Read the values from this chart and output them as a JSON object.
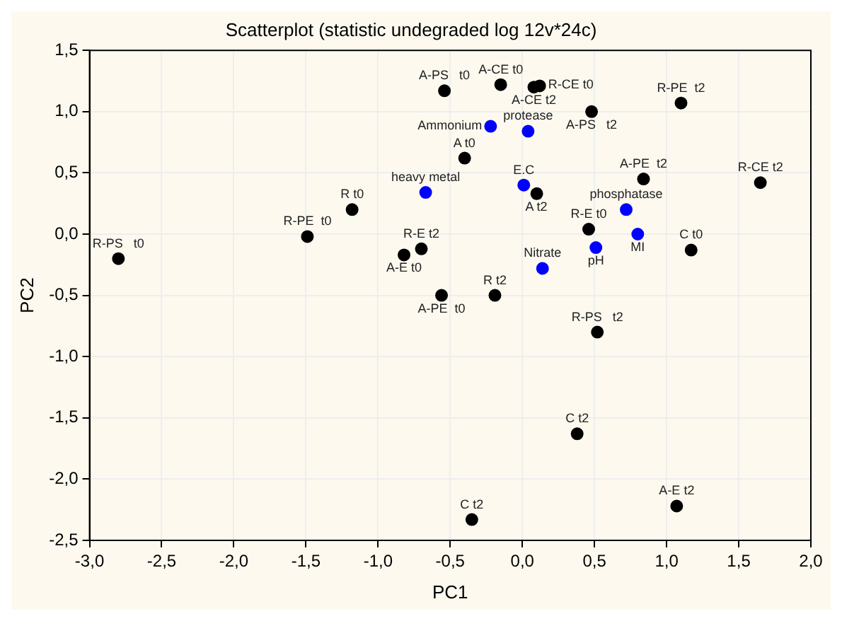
{
  "chart_data": {
    "type": "scatter",
    "title": "Scatterplot (statistic undegraded log 12v*24c)",
    "xlabel": "PC1",
    "ylabel": "PC2",
    "xlim": [
      -3,
      2
    ],
    "ylim": [
      -2.5,
      1.5
    ],
    "xticks": [
      {
        "value": -3,
        "label": "-3,0"
      },
      {
        "value": -2.5,
        "label": "-2,5"
      },
      {
        "value": -2,
        "label": "-2,0"
      },
      {
        "value": -1.5,
        "label": "-1,5"
      },
      {
        "value": -1,
        "label": "-1,0"
      },
      {
        "value": -0.5,
        "label": "-0,5"
      },
      {
        "value": 0,
        "label": "0,0"
      },
      {
        "value": 0.5,
        "label": "0,5"
      },
      {
        "value": 1,
        "label": "1,0"
      },
      {
        "value": 1.5,
        "label": "1,5"
      },
      {
        "value": 2,
        "label": "2,0"
      }
    ],
    "yticks": [
      {
        "value": -2.5,
        "label": "-2,5"
      },
      {
        "value": -2,
        "label": "-2,0"
      },
      {
        "value": -1.5,
        "label": "-1,5"
      },
      {
        "value": -1,
        "label": "-1,0"
      },
      {
        "value": -0.5,
        "label": "-0,5"
      },
      {
        "value": 0,
        "label": "0,0"
      },
      {
        "value": 0.5,
        "label": "0,5"
      },
      {
        "value": 1,
        "label": "1,0"
      },
      {
        "value": 1.5,
        "label": "1,5"
      }
    ],
    "grid": true,
    "marker": "circle",
    "series": [
      {
        "color": "#000000",
        "x": [
          -2.8,
          -1.49,
          -1.18,
          -0.82,
          -0.7,
          -0.56,
          -0.19,
          -0.54,
          -0.15,
          0.08,
          0.12,
          0.48,
          1.1,
          -0.4,
          0.1,
          0.84,
          1.65,
          0.46,
          1.17,
          0.52,
          0.38,
          -0.35,
          1.07
        ],
        "values": [
          -0.2,
          -0.02,
          0.2,
          -0.17,
          -0.12,
          -0.5,
          -0.5,
          1.17,
          1.22,
          1.2,
          1.21,
          1.0,
          1.07,
          0.62,
          0.33,
          0.45,
          0.42,
          0.04,
          -0.13,
          -0.8,
          -1.63,
          -2.33,
          -2.22
        ]
      },
      {
        "color": "#0000ff",
        "x": [
          -0.67,
          -0.22,
          0.04,
          0.01,
          0.72,
          0.8,
          0.51,
          0.14
        ],
        "values": [
          0.34,
          0.88,
          0.84,
          0.4,
          0.2,
          0.0,
          -0.11,
          -0.28
        ]
      }
    ],
    "annotations": [
      {
        "text": "R-PS   t0",
        "x": -2.8,
        "y": -0.2
      },
      {
        "text": "R-PE  t0",
        "x": -1.49,
        "y": -0.02
      },
      {
        "text": "R t0",
        "x": -1.18,
        "y": 0.2
      },
      {
        "text": "A-E t0",
        "x": -0.82,
        "y": -0.17
      },
      {
        "text": "R-E t2",
        "x": -0.7,
        "y": -0.12
      },
      {
        "text": "A-PE  t0",
        "x": -0.56,
        "y": -0.5
      },
      {
        "text": "R t2",
        "x": -0.19,
        "y": -0.5
      },
      {
        "text": "A-PS   t0",
        "x": -0.54,
        "y": 1.17
      },
      {
        "text": "A-CE t0",
        "x": -0.15,
        "y": 1.22
      },
      {
        "text": "A-CE t2",
        "x": 0.08,
        "y": 1.2
      },
      {
        "text": "R-CE t0",
        "x": 0.12,
        "y": 1.21
      },
      {
        "text": "A-PS   t2",
        "x": 0.48,
        "y": 1.0
      },
      {
        "text": "R-PE  t2",
        "x": 1.1,
        "y": 1.07
      },
      {
        "text": "A t0",
        "x": -0.4,
        "y": 0.62
      },
      {
        "text": "A t2",
        "x": 0.1,
        "y": 0.33
      },
      {
        "text": "A-PE  t2",
        "x": 0.84,
        "y": 0.45
      },
      {
        "text": "R-CE t2",
        "x": 1.65,
        "y": 0.42
      },
      {
        "text": "R-E t0",
        "x": 0.46,
        "y": 0.04
      },
      {
        "text": "C t0",
        "x": 1.17,
        "y": -0.13
      },
      {
        "text": "R-PS   t2",
        "x": 0.52,
        "y": -0.8
      },
      {
        "text": "C t2",
        "x": 0.38,
        "y": -1.63
      },
      {
        "text": "C t2",
        "x": -0.35,
        "y": -2.33
      },
      {
        "text": "A-E t2",
        "x": 1.07,
        "y": -2.22
      },
      {
        "text": "heavy metal",
        "x": -0.67,
        "y": 0.34
      },
      {
        "text": "Ammonium",
        "x": -0.22,
        "y": 0.88
      },
      {
        "text": "protease",
        "x": 0.04,
        "y": 0.84
      },
      {
        "text": "E.C",
        "x": 0.01,
        "y": 0.4
      },
      {
        "text": "phosphatase",
        "x": 0.72,
        "y": 0.2
      },
      {
        "text": "MI",
        "x": 0.8,
        "y": 0.0
      },
      {
        "text": "pH",
        "x": 0.51,
        "y": -0.11
      },
      {
        "text": "Nitrate",
        "x": 0.14,
        "y": -0.28
      }
    ]
  }
}
